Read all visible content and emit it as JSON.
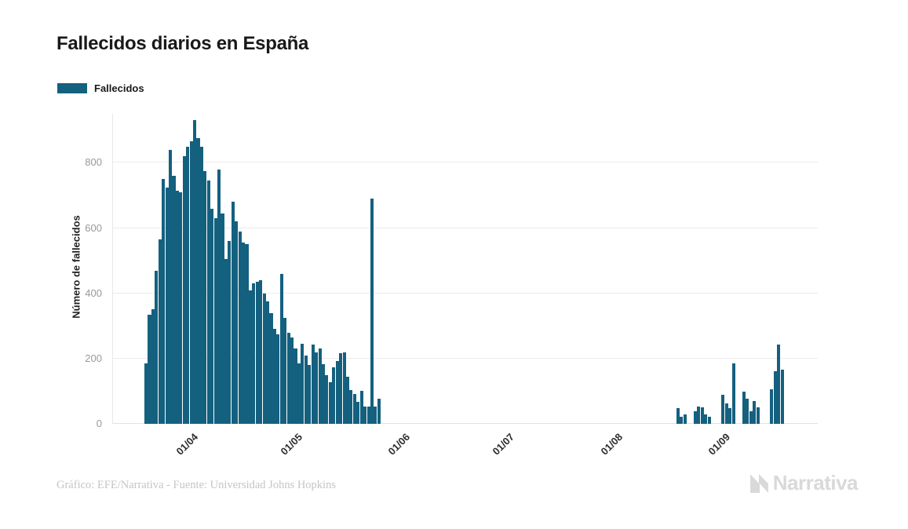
{
  "header": {
    "title": "Fallecidos diarios en España"
  },
  "legend": {
    "label": "Fallecidos",
    "swatch_color": "#14607f"
  },
  "footer": {
    "credit": "Gráfico: EFE/Narrativa - Fuente: Universidad Johns Hopkins",
    "brand": "Narrativa"
  },
  "chart_data": {
    "type": "bar",
    "title": "Fallecidos diarios en España",
    "xlabel": "",
    "ylabel": "Número de fallecidos",
    "legend": [
      "Fallecidos"
    ],
    "legend_position": "top-left",
    "grid": true,
    "bar_color": "#14607f",
    "ylim": [
      0,
      950
    ],
    "y_ticks": [
      0,
      200,
      400,
      600,
      800
    ],
    "x_ticks": [
      {
        "label": "01/04",
        "day": 13
      },
      {
        "label": "01/05",
        "day": 43
      },
      {
        "label": "01/06",
        "day": 74
      },
      {
        "label": "01/07",
        "day": 104
      },
      {
        "label": "01/08",
        "day": 135
      },
      {
        "label": "01/09",
        "day": 166
      }
    ],
    "total_days": 184,
    "days_not_listed_value": 0,
    "segments": [
      {
        "start_day": 0,
        "values": [
          185,
          335,
          350,
          470,
          565,
          750,
          725,
          840,
          760,
          715,
          710,
          820,
          850,
          865,
          930,
          875,
          850,
          775,
          745,
          660,
          630,
          780,
          645,
          505,
          560,
          680,
          620,
          590,
          555,
          550,
          410,
          430,
          435,
          440,
          400,
          375,
          340,
          290,
          275,
          460,
          325,
          280,
          265,
          230,
          185,
          245,
          210,
          180,
          244,
          220,
          232,
          184,
          148,
          128,
          172,
          192,
          216,
          220,
          144,
          104,
          92,
          68,
          100,
          52,
          54,
          690,
          52,
          76
        ]
      },
      {
        "start_day": 153,
        "values": [
          48,
          22,
          30,
          0,
          0,
          38,
          52,
          50,
          30,
          22,
          0,
          0,
          0,
          88,
          62,
          48,
          185,
          0,
          0,
          98,
          78,
          38,
          70,
          50,
          0,
          0,
          0,
          105,
          160,
          242,
          166
        ]
      }
    ]
  }
}
